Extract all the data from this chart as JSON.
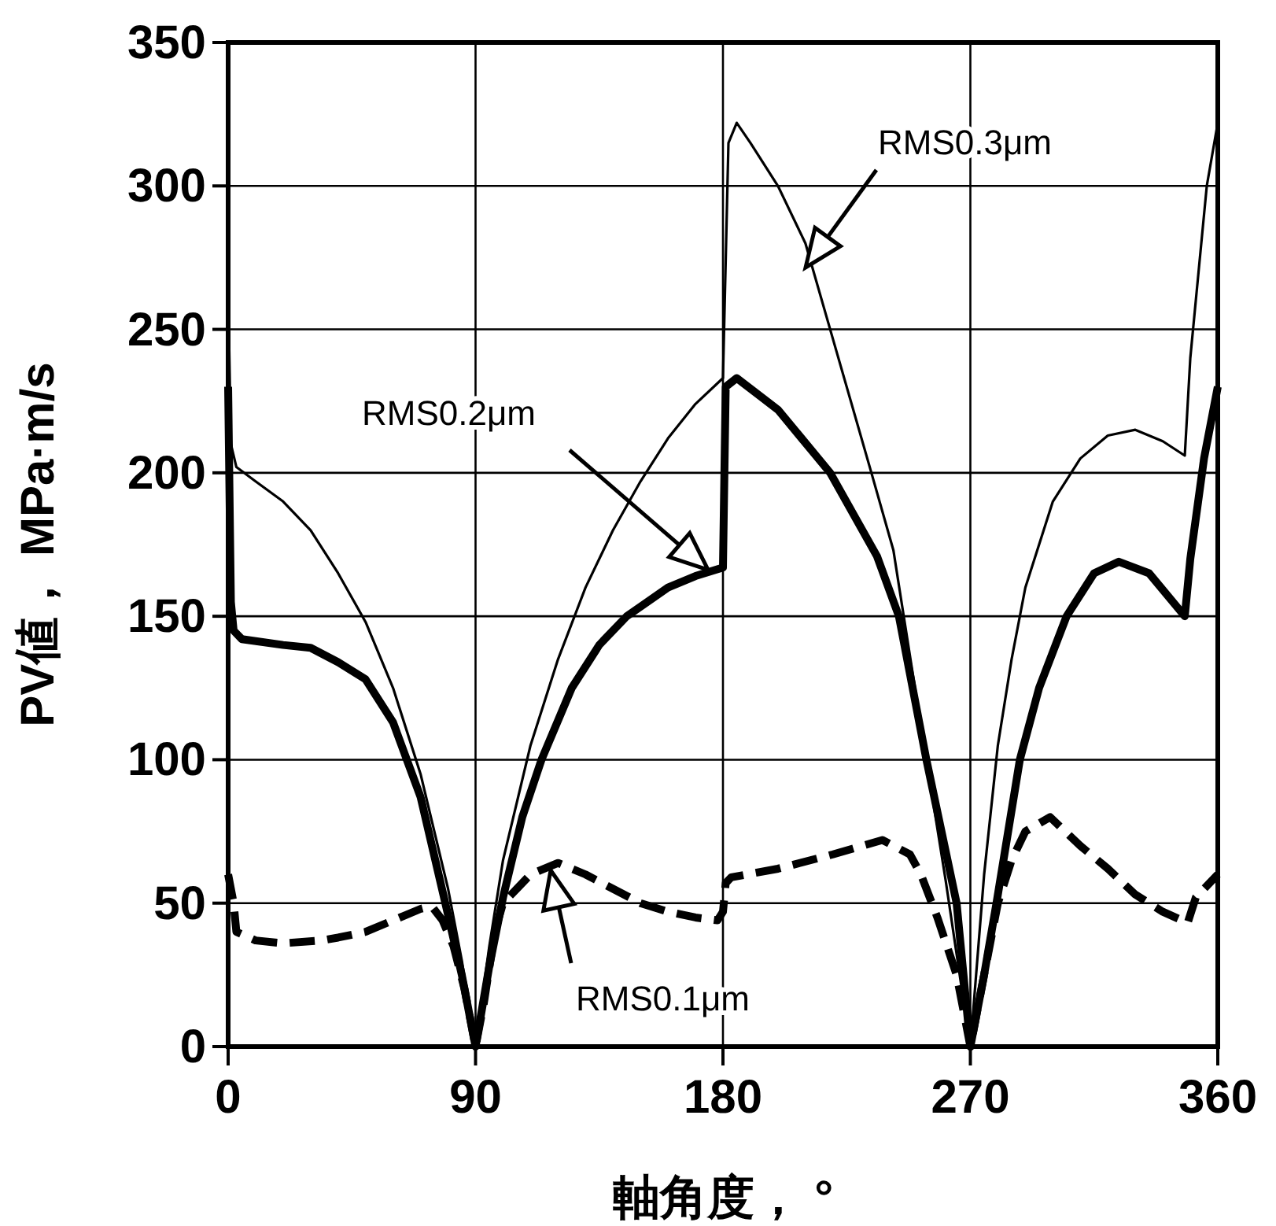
{
  "chart_data": {
    "type": "line",
    "xlabel": "軸角度， °",
    "ylabel": "PV値， MPa·m/s",
    "xlim": [
      0,
      360
    ],
    "xticks": [
      0,
      90,
      180,
      270,
      360
    ],
    "ylim": [
      0,
      350
    ],
    "yticks": [
      0,
      50,
      100,
      150,
      200,
      250,
      300,
      350
    ],
    "grid": true,
    "marker": "none",
    "series": [
      {
        "color": "#000000",
        "line_style": "solid",
        "x": [
          0,
          1,
          3,
          10,
          20,
          30,
          40,
          50,
          60,
          70,
          80,
          85,
          90,
          95,
          100,
          110,
          120,
          130,
          140,
          150,
          160,
          170,
          180,
          182,
          185,
          190,
          200,
          210,
          219,
          234,
          242,
          251,
          261,
          270,
          275,
          280,
          285,
          290,
          300,
          310,
          320,
          330,
          340,
          348,
          350,
          353,
          356,
          360
        ],
        "values": [
          265,
          210,
          202,
          197,
          190,
          180,
          165,
          148,
          125,
          95,
          55,
          30,
          0,
          35,
          65,
          105,
          135,
          160,
          180,
          197,
          212,
          224,
          233,
          315,
          322,
          315,
          300,
          280,
          250,
          200,
          173,
          118,
          58,
          0,
          60,
          105,
          135,
          160,
          190,
          205,
          213,
          215,
          211,
          206,
          240,
          270,
          300,
          322
        ]
      },
      {
        "color": "#000000",
        "line_style": "solid",
        "x": [
          0,
          1,
          2,
          5,
          20,
          30,
          40,
          50,
          60,
          65,
          70,
          79,
          85,
          90,
          95,
          100,
          107,
          114,
          125,
          135,
          145,
          160,
          170,
          180,
          181,
          185,
          200,
          219,
          236,
          244,
          254,
          265,
          270,
          275,
          279.5,
          288,
          295,
          305,
          315,
          324,
          335,
          348,
          350,
          355,
          360
        ],
        "values": [
          230,
          155,
          145,
          142,
          140,
          139,
          134,
          128,
          113,
          100,
          87,
          50,
          25,
          0,
          28,
          52,
          80,
          100,
          125,
          140,
          150,
          160,
          164,
          167,
          230,
          233,
          222,
          200,
          171,
          150,
          100,
          50,
          0,
          25,
          50,
          100,
          125,
          150,
          165,
          169,
          165,
          150,
          170,
          205,
          230
        ]
      },
      {
        "color": "#000000",
        "line_style": "dashed",
        "x": [
          0,
          2,
          3,
          10,
          20,
          34,
          40,
          50,
          60,
          70,
          74,
          78,
          82,
          86,
          90,
          93,
          97,
          100,
          105,
          110,
          120,
          130,
          140,
          150,
          160,
          170,
          178,
          180,
          181,
          183,
          200,
          220,
          238,
          248,
          252,
          258,
          265,
          270,
          275,
          280,
          285,
          290,
          299,
          310,
          320,
          330,
          340,
          347,
          349,
          352,
          360
        ],
        "values": [
          60,
          50,
          40,
          37,
          36,
          37,
          38,
          40,
          44,
          48,
          49,
          44,
          35,
          20,
          0,
          15,
          40,
          50,
          55,
          60,
          64,
          60,
          55,
          50,
          47,
          45,
          44,
          47,
          57,
          59,
          62,
          67,
          72,
          67,
          60,
          45,
          25,
          0,
          25,
          50,
          65,
          75,
          80,
          70,
          62,
          53,
          47,
          44,
          43,
          52,
          60
        ]
      }
    ],
    "annotations": [
      "RMS0.3μm",
      "RMS0.2μm",
      "RMS0.1μm"
    ]
  }
}
